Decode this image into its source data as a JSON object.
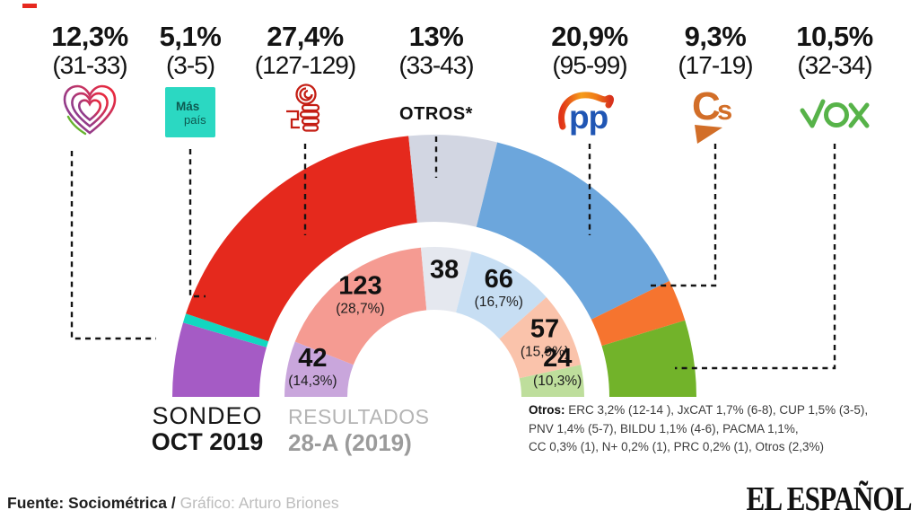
{
  "parties": [
    {
      "id": "podemos",
      "name": "Unidas Podemos",
      "pct": "12,3%",
      "range": "(31-33)"
    },
    {
      "id": "mas-pais",
      "name": "Más País",
      "pct": "5,1%",
      "range": "(3-5)",
      "logo_text_top": "Más",
      "logo_text_bottom": "país"
    },
    {
      "id": "psoe",
      "name": "PSOE",
      "pct": "27,4%",
      "range": "(127-129)"
    },
    {
      "id": "otros",
      "name": "Otros",
      "pct": "13%",
      "range": "(33-43)",
      "label": "OTROS*"
    },
    {
      "id": "pp",
      "name": "PP",
      "pct": "20,9%",
      "range": "(95-99)",
      "logo_text": "pp"
    },
    {
      "id": "cs",
      "name": "Ciudadanos",
      "pct": "9,3%",
      "range": "(17-19)",
      "logo_text_c": "C",
      "logo_text_s": "s"
    },
    {
      "id": "vox",
      "name": "VOX",
      "pct": "10,5%",
      "range": "(32-34)"
    }
  ],
  "chart_data": {
    "type": "donut",
    "shape": "semicircle-hemicycle",
    "total_seats": 350,
    "outer_ring": {
      "label": "SONDEO OCT 2019",
      "segments": [
        {
          "id": "podemos",
          "party": "Unidas Podemos",
          "pct": "12,3%",
          "seats_range": "31-33",
          "seats": 32,
          "color": "#a55bc5"
        },
        {
          "id": "mas-pais",
          "party": "Más País",
          "pct": "5,1%",
          "seats_range": "3-5",
          "seats": 4,
          "color": "#12d7c0"
        },
        {
          "id": "psoe",
          "party": "PSOE",
          "pct": "27,4%",
          "seats_range": "127-129",
          "seats": 128,
          "color": "#e5291d"
        },
        {
          "id": "otros",
          "party": "Otros",
          "pct": "13%",
          "seats_range": "33-43",
          "seats": 38,
          "color": "#d2d6e2"
        },
        {
          "id": "pp",
          "party": "PP",
          "pct": "20,9%",
          "seats_range": "95-99",
          "seats": 97,
          "color": "#6ca6dc"
        },
        {
          "id": "cs",
          "party": "Cs",
          "pct": "9,3%",
          "seats_range": "17-19",
          "seats": 18,
          "color": "#f6742f"
        },
        {
          "id": "vox",
          "party": "VOX",
          "pct": "10,5%",
          "seats_range": "32-34",
          "seats": 33,
          "color": "#72b32a"
        }
      ]
    },
    "inner_ring": {
      "label": "RESULTADOS 28-A (2019)",
      "segments": [
        {
          "id": "podemos",
          "party": "Unidas Podemos",
          "seats": 42,
          "pct_label": "(14,3%)",
          "color": "#c9a6dc"
        },
        {
          "id": "psoe",
          "party": "PSOE",
          "seats": 123,
          "pct_label": "(28,7%)",
          "color": "#f59b92"
        },
        {
          "id": "otros",
          "party": "Otros",
          "seats": 38,
          "pct_label": "",
          "color": "#e5e8ef"
        },
        {
          "id": "pp",
          "party": "PP",
          "seats": 66,
          "pct_label": "(16,7%)",
          "color": "#c7def3"
        },
        {
          "id": "cs",
          "party": "Cs",
          "seats": 57,
          "pct_label": "(15,9%)",
          "color": "#fac3ab"
        },
        {
          "id": "vox",
          "party": "VOX",
          "seats": 24,
          "pct_label": "(10,3%)",
          "color": "#bede9c"
        }
      ]
    }
  },
  "legend": {
    "sondeo_line1": "SONDEO",
    "sondeo_line2": "OCT 2019",
    "resultados_line1": "RESULTADOS",
    "resultados_line2": "28-A (2019)"
  },
  "otros_note": {
    "label": "Otros:",
    "line1": "ERC 3,2% (12-14 ), JxCAT 1,7% (6-8), CUP 1,5% (3-5),",
    "line2": "PNV  1,4% (5-7), BILDU 1,1% (4-6), PACMA 1,1%,",
    "line3": "CC  0,3% (1), N+ 0,2% (1), PRC 0,2% (1), Otros (2,3%)"
  },
  "footer": {
    "source_bold": "Fuente: Sociométrica /",
    "credit": "Gráfico: Arturo Briones"
  },
  "brand": "EL ESPAÑOL"
}
